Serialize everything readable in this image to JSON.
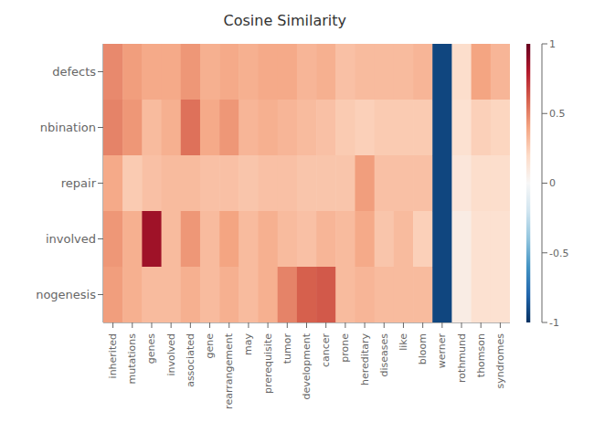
{
  "chart_data": {
    "type": "heatmap",
    "title": "Cosine Similarity",
    "x_categories": [
      "inherited",
      "mutations",
      "genes",
      "involved",
      "associated",
      "gene",
      "rearrangement",
      "may",
      "prerequisite",
      "tumor",
      "development",
      "cancer",
      "prone",
      "hereditary",
      "diseases",
      "like",
      "bloom",
      "werner",
      "rothmund",
      "thomson",
      "syndromes"
    ],
    "y_categories": [
      "defects",
      "nbination",
      "repair",
      "involved",
      "nogenesis"
    ],
    "cells": [
      [
        0.48,
        0.42,
        0.38,
        0.38,
        0.44,
        0.36,
        0.38,
        0.36,
        0.38,
        0.38,
        0.34,
        0.36,
        0.3,
        0.32,
        0.32,
        0.32,
        0.34,
        -0.92,
        0.18,
        0.4,
        0.34
      ],
      [
        0.5,
        0.44,
        0.32,
        0.36,
        0.55,
        0.38,
        0.44,
        0.34,
        0.36,
        0.34,
        0.32,
        0.3,
        0.26,
        0.24,
        0.26,
        0.26,
        0.26,
        -0.92,
        0.16,
        0.24,
        0.22
      ],
      [
        0.38,
        0.26,
        0.3,
        0.32,
        0.32,
        0.3,
        0.3,
        0.28,
        0.3,
        0.3,
        0.28,
        0.28,
        0.28,
        0.42,
        0.3,
        0.3,
        0.3,
        -0.92,
        0.12,
        0.18,
        0.18
      ],
      [
        0.44,
        0.36,
        0.85,
        0.32,
        0.44,
        0.32,
        0.4,
        0.32,
        0.36,
        0.32,
        0.3,
        0.34,
        0.32,
        0.38,
        0.28,
        0.32,
        0.24,
        -0.92,
        0.08,
        0.16,
        0.16
      ],
      [
        0.42,
        0.36,
        0.32,
        0.32,
        0.36,
        0.32,
        0.36,
        0.32,
        0.36,
        0.5,
        0.6,
        0.62,
        0.32,
        0.34,
        0.32,
        0.32,
        0.32,
        -0.92,
        0.08,
        0.16,
        0.16
      ]
    ],
    "colorbar_lim": [
      -1.0,
      1.0
    ],
    "colorbar_ticks": [
      -1,
      -0.5,
      0,
      0.5,
      1
    ]
  }
}
